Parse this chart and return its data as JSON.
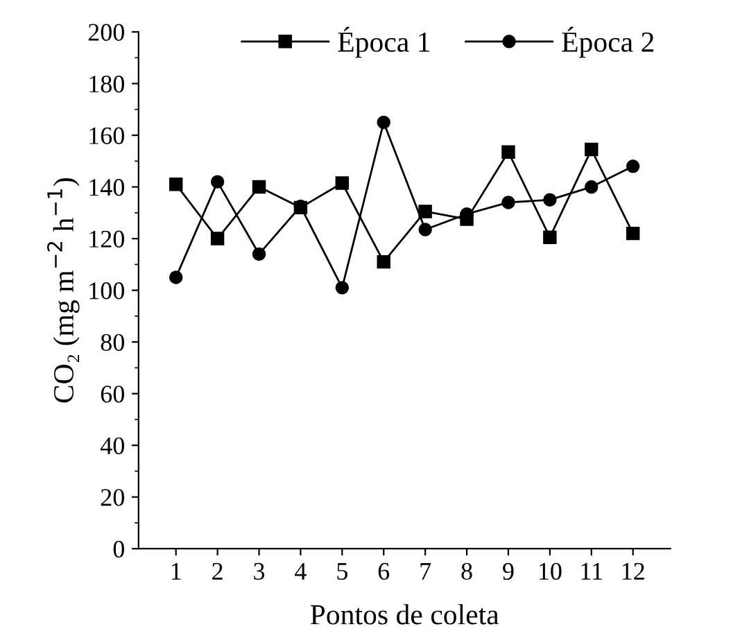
{
  "chart_data": {
    "type": "line",
    "xlabel": "Pontos de coleta",
    "ylabel": "CO₂ (mg m$^{−2}$ h$^{−1}$)",
    "categories": [
      "1",
      "2",
      "3",
      "4",
      "5",
      "6",
      "7",
      "8",
      "9",
      "10",
      "11",
      "12"
    ],
    "series": [
      {
        "name": "Época 1",
        "color": "#000000",
        "marker": "square",
        "values": [
          141,
          120,
          140,
          132,
          141.5,
          111,
          130.5,
          127.5,
          153.5,
          120.5,
          154.5,
          122
        ]
      },
      {
        "name": "Época 2",
        "color": "#000000",
        "marker": "circle",
        "values": [
          105,
          142,
          114,
          132.5,
          101,
          165,
          123.5,
          129.5,
          134,
          135,
          140,
          148
        ]
      }
    ],
    "ylim": [
      0,
      200
    ],
    "yticks": [
      0,
      20,
      40,
      60,
      80,
      100,
      120,
      140,
      160,
      180,
      200
    ],
    "grid": false,
    "legend": "top right",
    "line_style": "solid"
  }
}
